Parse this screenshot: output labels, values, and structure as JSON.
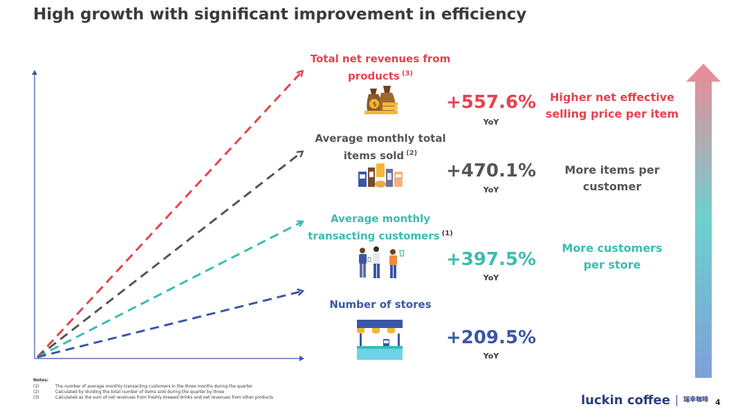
{
  "title": "High growth with significant improvement in efficiency",
  "colors": {
    "red": "#e8414e",
    "gray": "#555555",
    "teal": "#3bbcb1",
    "blue": "#3b56a6",
    "axis": "#3b56a6"
  },
  "metrics": [
    {
      "label_line1": "Total net revenues from",
      "label_line2": "products",
      "note": "(3)",
      "value": "+557.6%",
      "yoy": "YoY",
      "driver_line1": "Higher net effective",
      "driver_line2": "selling price per item",
      "icon": "money-bags-icon"
    },
    {
      "label_line1": "Average monthly total",
      "label_line2": "items sold",
      "note": "(2)",
      "value": "+470.1%",
      "yoy": "YoY",
      "driver_line1": "More items per",
      "driver_line2": "customer",
      "icon": "coffee-products-icon"
    },
    {
      "label_line1": "Average monthly",
      "label_line2": "transacting customers",
      "note": "(1)",
      "value": "+397.5%",
      "yoy": "YoY",
      "driver_line1": "More customers",
      "driver_line2": "per store",
      "icon": "customers-icon"
    },
    {
      "label_line1": "Number of stores",
      "label_line2": "",
      "note": "",
      "value": "+209.5%",
      "yoy": "YoY",
      "driver_line1": "",
      "driver_line2": "",
      "icon": "store-icon"
    }
  ],
  "notes": {
    "heading": "Notes:",
    "items": [
      {
        "num": "(1)",
        "text": "The number of average monthly transacting customers in the three months during the quarter"
      },
      {
        "num": "(2)",
        "text": "Calculated by dividing the total number of items sold during the quarter by three"
      },
      {
        "num": "(3)",
        "text": "Calculated as the sum of net revenues from freshly brewed drinks and net revenues from other products"
      }
    ]
  },
  "brand": {
    "name": "luckin coffee",
    "chinese": "瑞幸咖啡"
  },
  "page_number": "4"
}
